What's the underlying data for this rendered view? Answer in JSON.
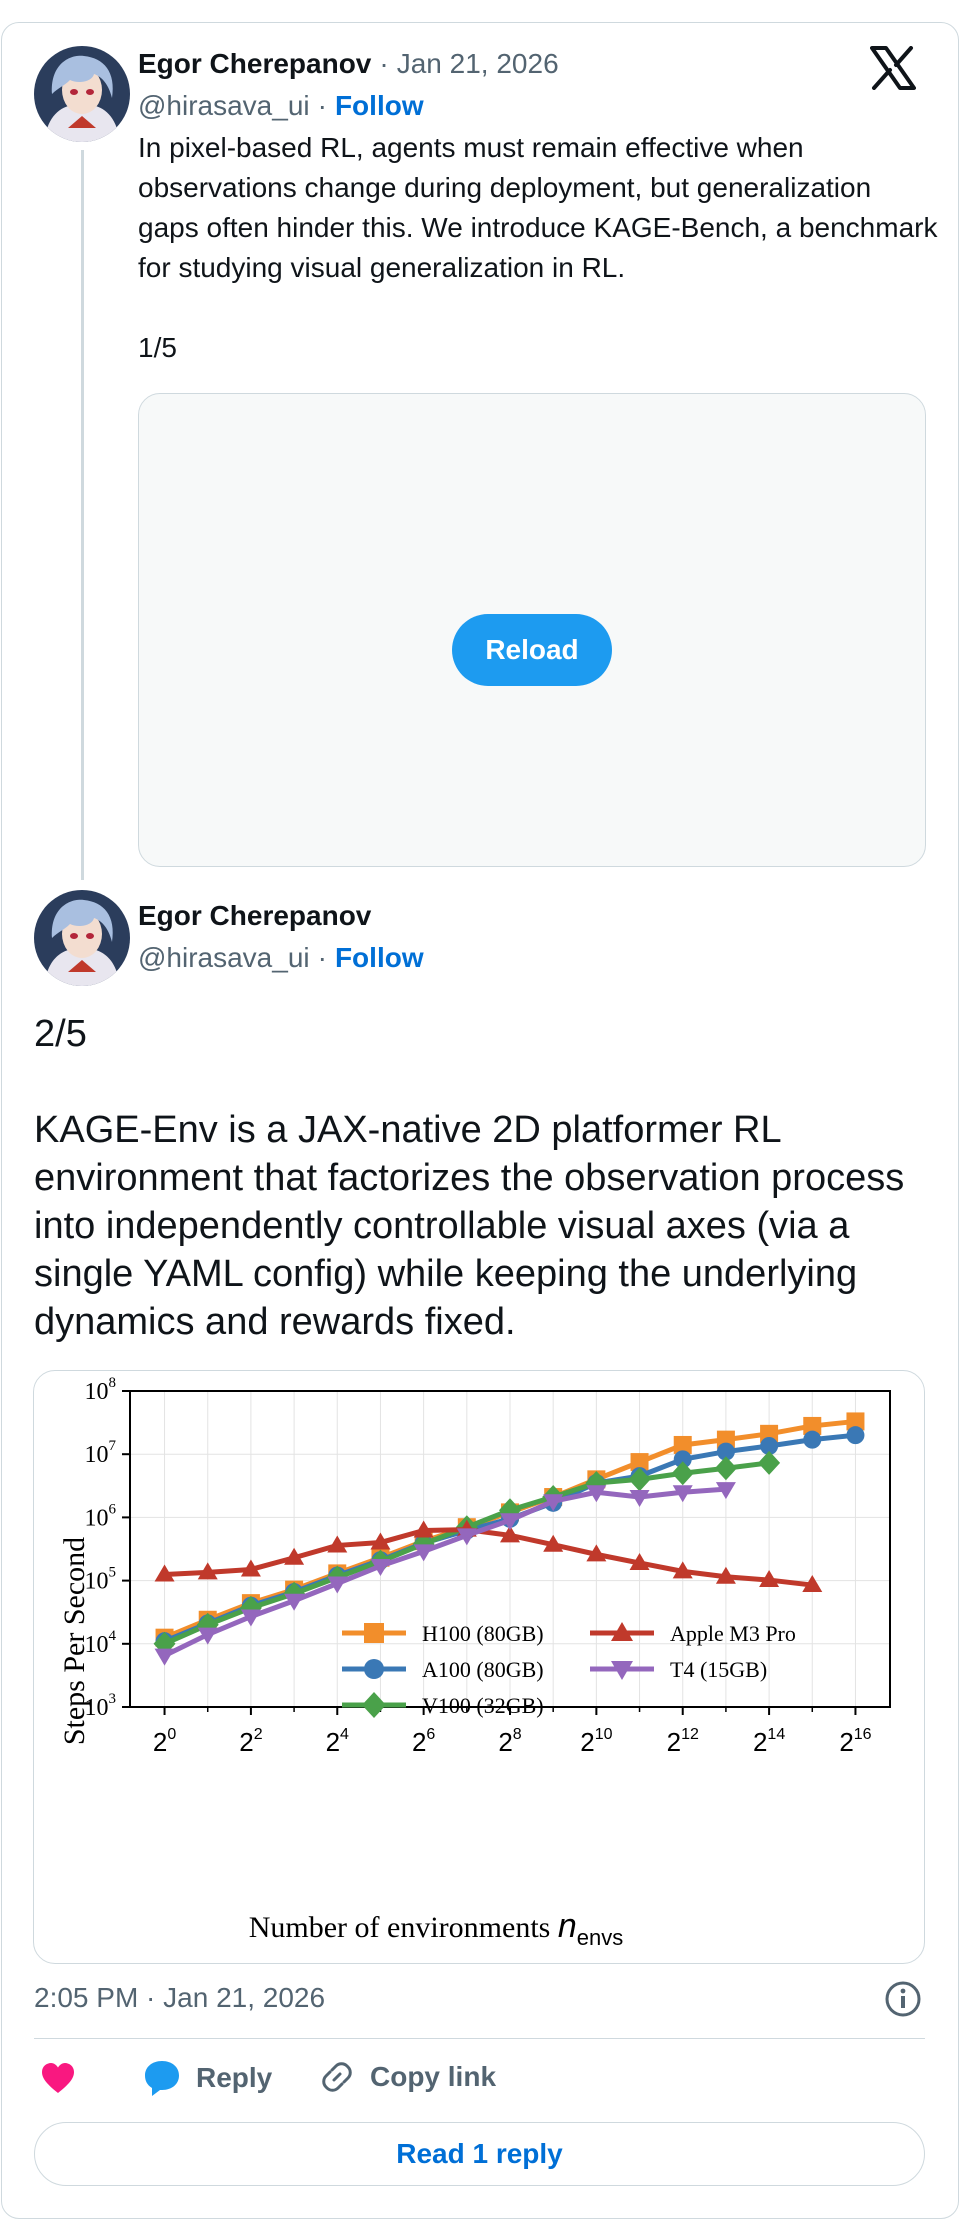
{
  "tweet1": {
    "author_name": "Egor Cherepanov",
    "separator": "·",
    "date": "Jan 21, 2026",
    "handle": "@hirasava_ui",
    "follow_label": "Follow",
    "text": "In pixel-based RL, agents must remain effective when observations change during deployment, but generalization gaps often hinder this. We introduce KAGE-Bench, a benchmark for studying visual generalization in RL.\n\n1/5",
    "reload_label": "Reload"
  },
  "tweet2": {
    "author_name": "Egor Cherepanov",
    "handle": "@hirasava_ui",
    "separator": "·",
    "follow_label": "Follow",
    "text": "2/5\n\nKAGE-Env is a JAX-native 2D platformer RL environment that factorizes the observation process into independently controllable visual axes (via a single YAML config) while keeping the underlying dynamics and rewards fixed."
  },
  "footer": {
    "timestamp": "2:05 PM · Jan 21, 2026",
    "reply_label": "Reply",
    "copy_link_label": "Copy link",
    "read_replies_label": "Read 1 reply"
  },
  "icons": {
    "logo": "x-logo-icon",
    "info": "info-icon",
    "like": "heart-icon",
    "reply": "speech-bubble-icon",
    "copy": "link-icon"
  },
  "colors": {
    "accent": "#1d9bf0",
    "link": "#006fd6",
    "like": "#f91880"
  },
  "chart_data": {
    "type": "line",
    "ylabel": "Steps Per Second",
    "xlabel": "Number of environments",
    "xlabel_symbol": "n",
    "xlabel_subscript": "envs",
    "x_scale": "log2",
    "y_scale": "log10",
    "xlim_log2": [
      -0.8,
      16.8
    ],
    "ylim_log10": [
      3,
      8
    ],
    "x_ticks": [
      {
        "base": "2",
        "exp": "0"
      },
      {
        "base": "2",
        "exp": "2"
      },
      {
        "base": "2",
        "exp": "4"
      },
      {
        "base": "2",
        "exp": "6"
      },
      {
        "base": "2",
        "exp": "8"
      },
      {
        "base": "2",
        "exp": "10"
      },
      {
        "base": "2",
        "exp": "12"
      },
      {
        "base": "2",
        "exp": "14"
      },
      {
        "base": "2",
        "exp": "16"
      }
    ],
    "y_ticks": [
      {
        "base": "10",
        "exp": "3"
      },
      {
        "base": "10",
        "exp": "4"
      },
      {
        "base": "10",
        "exp": "5"
      },
      {
        "base": "10",
        "exp": "6"
      },
      {
        "base": "10",
        "exp": "7"
      },
      {
        "base": "10",
        "exp": "8"
      }
    ],
    "grid": true,
    "legend_position": "lower-right",
    "series": [
      {
        "name": "H100 (80GB)",
        "color": "#f28e2b",
        "marker": "square",
        "x_log2": [
          0,
          1,
          2,
          3,
          4,
          5,
          6,
          7,
          8,
          9,
          10,
          11,
          12,
          13,
          14,
          15,
          16
        ],
        "y": [
          12500,
          24000,
          44000,
          72000,
          130000,
          230000,
          420000,
          700000,
          1200000,
          2100000,
          4000000,
          7500000,
          14000000,
          17000000,
          21000000,
          28000000,
          33000000
        ]
      },
      {
        "name": "A100 (80GB)",
        "color": "#3a78b5",
        "marker": "circle",
        "x_log2": [
          0,
          1,
          2,
          3,
          4,
          5,
          6,
          7,
          8,
          9,
          10,
          11,
          12,
          13,
          14,
          15,
          16
        ],
        "y": [
          11000,
          21000,
          40000,
          66000,
          120000,
          210000,
          390000,
          620000,
          950000,
          1700000,
          3500000,
          4500000,
          8300000,
          11000000,
          13500000,
          17000000,
          20000000
        ]
      },
      {
        "name": "V100 (32GB)",
        "color": "#4aa14a",
        "marker": "diamond",
        "x_log2": [
          0,
          1,
          2,
          3,
          4,
          5,
          6,
          7,
          8,
          9,
          10,
          11,
          12,
          13,
          14
        ],
        "y": [
          10000,
          20000,
          37000,
          62000,
          112000,
          200000,
          380000,
          700000,
          1300000,
          2100000,
          3500000,
          4000000,
          5000000,
          6000000,
          7300000
        ]
      },
      {
        "name": "Apple M3 Pro",
        "color": "#c0392b",
        "marker": "triangle-up",
        "x_log2": [
          0,
          1,
          2,
          3,
          4,
          5,
          6,
          7,
          8,
          9,
          10,
          11,
          12,
          13,
          14,
          15
        ],
        "y": [
          125000,
          135000,
          150000,
          230000,
          360000,
          400000,
          620000,
          640000,
          520000,
          370000,
          260000,
          190000,
          140000,
          115000,
          102000,
          85000
        ]
      },
      {
        "name": "T4 (15GB)",
        "color": "#9467bd",
        "marker": "triangle-down",
        "x_log2": [
          0,
          1,
          2,
          3,
          4,
          5,
          6,
          7,
          8,
          9,
          10,
          11,
          12,
          13
        ],
        "y": [
          6500,
          14000,
          27000,
          48000,
          90000,
          170000,
          290000,
          520000,
          900000,
          1800000,
          2500000,
          2100000,
          2500000,
          2800000
        ]
      }
    ]
  }
}
